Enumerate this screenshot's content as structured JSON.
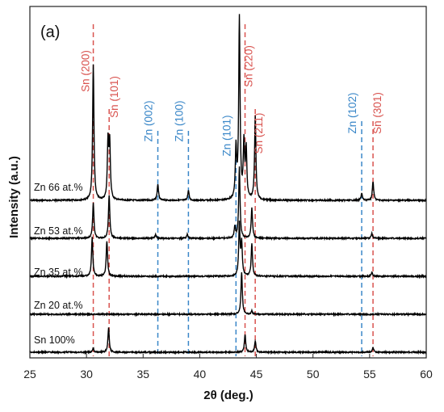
{
  "chart_data": {
    "type": "line",
    "panel_label": "(a)",
    "xlabel": "2θ (deg.)",
    "ylabel": "Intensity (a.u.)",
    "xlim": [
      25,
      60
    ],
    "xticks": [
      25,
      30,
      35,
      40,
      45,
      50,
      55,
      60
    ],
    "grid": false,
    "series_colors": {
      "trace": "#000000",
      "sn": "#d9534f",
      "zn": "#3a87c8"
    },
    "reference_lines": [
      {
        "label": "Sn (200)",
        "x": 30.6,
        "phase": "Sn"
      },
      {
        "label": "Sn (101)",
        "x": 32.0,
        "phase": "Sn"
      },
      {
        "label": "Zn (002)",
        "x": 36.3,
        "phase": "Zn"
      },
      {
        "label": "Zn (100)",
        "x": 39.0,
        "phase": "Zn"
      },
      {
        "label": "Zn (101)",
        "x": 43.2,
        "phase": "Zn"
      },
      {
        "label": "Sn (220)",
        "x": 44.0,
        "phase": "Sn"
      },
      {
        "label": "Sn (211)",
        "x": 44.9,
        "phase": "Sn"
      },
      {
        "label": "Zn (102)",
        "x": 54.3,
        "phase": "Zn"
      },
      {
        "label": "Sn (301)",
        "x": 55.3,
        "phase": "Sn"
      }
    ],
    "series": [
      {
        "name": "Zn 66 at.%",
        "offset": 4,
        "peaks": [
          {
            "x": 30.6,
            "h": 4.2
          },
          {
            "x": 31.9,
            "h": 1.8
          },
          {
            "x": 32.05,
            "h": 1.7
          },
          {
            "x": 36.3,
            "h": 0.5
          },
          {
            "x": 39.0,
            "h": 0.3
          },
          {
            "x": 43.2,
            "h": 1.55
          },
          {
            "x": 43.5,
            "h": 5.6
          },
          {
            "x": 43.9,
            "h": 1.7
          },
          {
            "x": 44.1,
            "h": 1.5
          },
          {
            "x": 44.9,
            "h": 2.6
          },
          {
            "x": 54.3,
            "h": 0.22
          },
          {
            "x": 55.3,
            "h": 0.58
          }
        ]
      },
      {
        "name": "Zn 53 at.%",
        "offset": 3,
        "peaks": [
          {
            "x": 30.6,
            "h": 1.1
          },
          {
            "x": 32.0,
            "h": 1.35
          },
          {
            "x": 36.1,
            "h": 0.12
          },
          {
            "x": 38.9,
            "h": 0.12
          },
          {
            "x": 43.1,
            "h": 0.35
          },
          {
            "x": 43.5,
            "h": 2.2
          },
          {
            "x": 44.6,
            "h": 0.95
          },
          {
            "x": 55.2,
            "h": 0.15
          }
        ]
      },
      {
        "name": "Zn 35 at.%",
        "offset": 2,
        "peaks": [
          {
            "x": 30.5,
            "h": 1.2
          },
          {
            "x": 31.8,
            "h": 1.1
          },
          {
            "x": 43.5,
            "h": 1.6
          },
          {
            "x": 43.7,
            "h": 1.0
          },
          {
            "x": 44.6,
            "h": 1.0
          },
          {
            "x": 55.2,
            "h": 0.12
          }
        ]
      },
      {
        "name": "Zn 20 at.%",
        "offset": 1,
        "peaks": [
          {
            "x": 43.7,
            "h": 1.3
          },
          {
            "x": 44.6,
            "h": 0.1
          }
        ]
      },
      {
        "name": "Sn 100%",
        "offset": 0,
        "peaks": [
          {
            "x": 30.6,
            "h": 0.12
          },
          {
            "x": 31.95,
            "h": 0.75
          },
          {
            "x": 44.0,
            "h": 0.55
          },
          {
            "x": 44.9,
            "h": 0.35
          },
          {
            "x": 55.3,
            "h": 0.15
          }
        ]
      }
    ]
  }
}
